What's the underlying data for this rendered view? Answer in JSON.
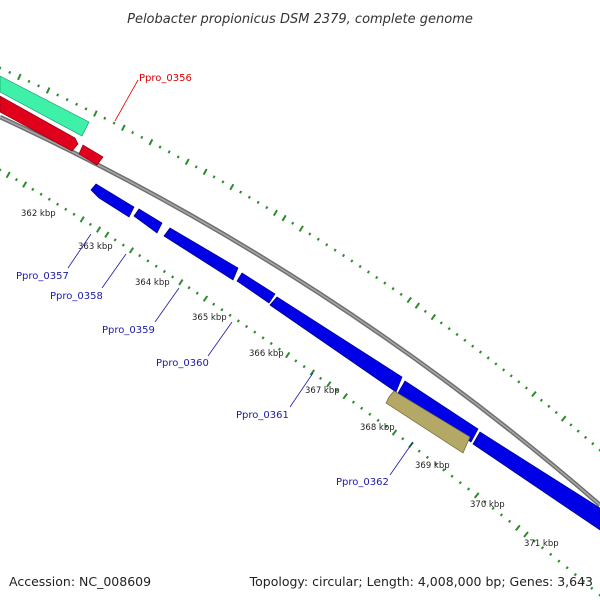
{
  "title": "Pelobacter propionicus DSM 2379, complete genome",
  "footer": {
    "accession": "Accession: NC_008609",
    "summary": "Topology: circular; Length: 4,008,000 bp; Genes: 3,643"
  },
  "colors": {
    "backbone": "#808080",
    "forward_gene": "#e0001b",
    "reverse_gene": "#0000e6",
    "rna_feature": "#3ff0a8",
    "pseudo_feature": "#b3a865",
    "gc_dots": "#2e8b2e",
    "label_red": "#dd0000",
    "label_blue": "#1a1aa6"
  },
  "ticks": [
    {
      "label": "362 kbp"
    },
    {
      "label": "363 kbp"
    },
    {
      "label": "364 kbp"
    },
    {
      "label": "365 kbp"
    },
    {
      "label": "366 kbp"
    },
    {
      "label": "367 kbp"
    },
    {
      "label": "368 kbp"
    },
    {
      "label": "369 kbp"
    },
    {
      "label": "370 kbp"
    },
    {
      "label": "371 kbp"
    }
  ],
  "gene_labels": [
    {
      "name": "Ppro_0356",
      "color": "#dd0000"
    },
    {
      "name": "Ppro_0357",
      "color": "#1a1aa6"
    },
    {
      "name": "Ppro_0358",
      "color": "#1a1aa6"
    },
    {
      "name": "Ppro_0359",
      "color": "#1a1aa6"
    },
    {
      "name": "Ppro_0360",
      "color": "#1a1aa6"
    },
    {
      "name": "Ppro_0361",
      "color": "#1a1aa6"
    },
    {
      "name": "Ppro_0362",
      "color": "#1a1aa6"
    }
  ]
}
